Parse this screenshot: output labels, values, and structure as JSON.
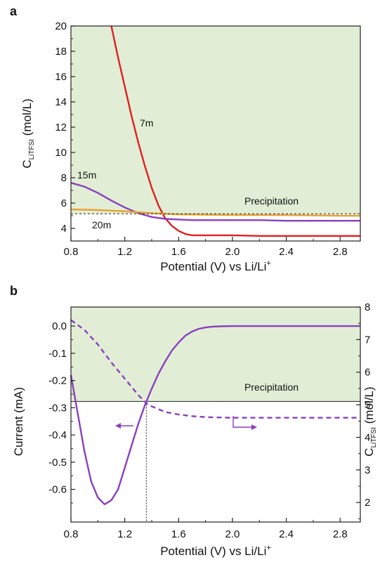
{
  "chart_data": [
    {
      "panel_label": "a",
      "type": "line",
      "xlabel": "Potential (V) vs Li/Li",
      "xlabel_sup": "+",
      "ylabel_main": "C",
      "ylabel_sub": "LiTFSI",
      "ylabel_unit": " (mol/L)",
      "xlim": [
        0.8,
        2.95
      ],
      "ylim": [
        3,
        20
      ],
      "xticks": [
        "0.8",
        "1.2",
        "1.6",
        "2.0",
        "2.4",
        "2.8"
      ],
      "yticks": [
        "4",
        "6",
        "8",
        "10",
        "12",
        "14",
        "16",
        "18",
        "20"
      ],
      "precipitation_level": 5.15,
      "precipitation_label": "Precipitation",
      "shaded_color": "#e1eed5",
      "series": [
        {
          "name": "7m",
          "color": "#e02020",
          "x": [
            1.1,
            1.15,
            1.2,
            1.25,
            1.3,
            1.35,
            1.4,
            1.45,
            1.5,
            1.55,
            1.6,
            1.65,
            1.7,
            1.8,
            2.0,
            2.2,
            2.4,
            2.6,
            2.8,
            2.95
          ],
          "y": [
            20.0,
            17.5,
            15.2,
            12.9,
            10.8,
            8.9,
            7.2,
            5.8,
            4.8,
            4.2,
            3.8,
            3.55,
            3.45,
            3.45,
            3.45,
            3.4,
            3.4,
            3.4,
            3.4,
            3.4
          ]
        },
        {
          "name": "15m",
          "color": "#8a3fc0",
          "x": [
            0.8,
            0.9,
            1.0,
            1.1,
            1.2,
            1.3,
            1.4,
            1.5,
            1.6,
            1.7,
            2.0,
            2.2,
            2.4,
            2.6,
            2.8,
            2.95
          ],
          "y": [
            7.6,
            7.3,
            6.8,
            6.2,
            5.65,
            5.2,
            4.9,
            4.75,
            4.7,
            4.65,
            4.65,
            4.65,
            4.6,
            4.6,
            4.6,
            4.6
          ]
        },
        {
          "name": "20m",
          "color": "#e8a030",
          "x": [
            0.8,
            1.0,
            1.2,
            1.4,
            1.6,
            2.0,
            2.4,
            2.8,
            2.95
          ],
          "y": [
            5.5,
            5.45,
            5.35,
            5.2,
            5.1,
            5.05,
            5.05,
            5.0,
            5.0
          ]
        }
      ]
    },
    {
      "panel_label": "b",
      "type": "line",
      "xlabel": "Potential (V) vs Li/Li",
      "xlabel_sup": "+",
      "ylabel_left": "Current (mA)",
      "ylabel_right_main": "C",
      "ylabel_right_sub": "LiTFSI",
      "ylabel_right_unit": " (mol/L)",
      "precipitation_label": "Precipitation",
      "precipitation_current": -0.277,
      "crossing_x": 1.36,
      "xlim": [
        0.8,
        2.95
      ],
      "ylim_left": [
        -0.72,
        0.07
      ],
      "ylim_right": [
        1.4,
        8.0
      ],
      "xticks": [
        "0.8",
        "1.2",
        "1.6",
        "2.0",
        "2.4",
        "2.8"
      ],
      "yticks_left": [
        "0.0",
        "-0.1",
        "-0.2",
        "-0.3",
        "-0.4",
        "-0.5",
        "-0.6"
      ],
      "yticks_right": [
        "2",
        "3",
        "4",
        "5",
        "6",
        "7",
        "8"
      ],
      "shaded_color": "#e1eed5",
      "series": [
        {
          "axis": "left",
          "color": "#8a3fc0",
          "style": "solid",
          "x": [
            0.8,
            0.85,
            0.9,
            0.95,
            1.0,
            1.05,
            1.1,
            1.15,
            1.2,
            1.25,
            1.3,
            1.35,
            1.4,
            1.45,
            1.5,
            1.55,
            1.6,
            1.65,
            1.7,
            1.75,
            1.8,
            1.85,
            1.9,
            2.0,
            2.2,
            2.4,
            2.6,
            2.8,
            2.95
          ],
          "y": [
            -0.18,
            -0.32,
            -0.46,
            -0.57,
            -0.63,
            -0.655,
            -0.64,
            -0.6,
            -0.52,
            -0.44,
            -0.36,
            -0.29,
            -0.23,
            -0.175,
            -0.13,
            -0.09,
            -0.06,
            -0.035,
            -0.02,
            -0.01,
            -0.005,
            -0.002,
            -0.001,
            0.0,
            0.0,
            0.0,
            0.0,
            0.0,
            0.0
          ]
        },
        {
          "axis": "right",
          "color": "#8a3fc0",
          "style": "dashed",
          "x": [
            0.8,
            0.9,
            1.0,
            1.1,
            1.2,
            1.3,
            1.36,
            1.4,
            1.5,
            1.6,
            1.7,
            1.8,
            2.0,
            2.2,
            2.4,
            2.6,
            2.8,
            2.95
          ],
          "y": [
            7.6,
            7.3,
            6.85,
            6.3,
            5.8,
            5.3,
            5.05,
            4.95,
            4.78,
            4.7,
            4.65,
            4.62,
            4.6,
            4.6,
            4.6,
            4.6,
            4.6,
            4.6
          ]
        }
      ]
    }
  ]
}
